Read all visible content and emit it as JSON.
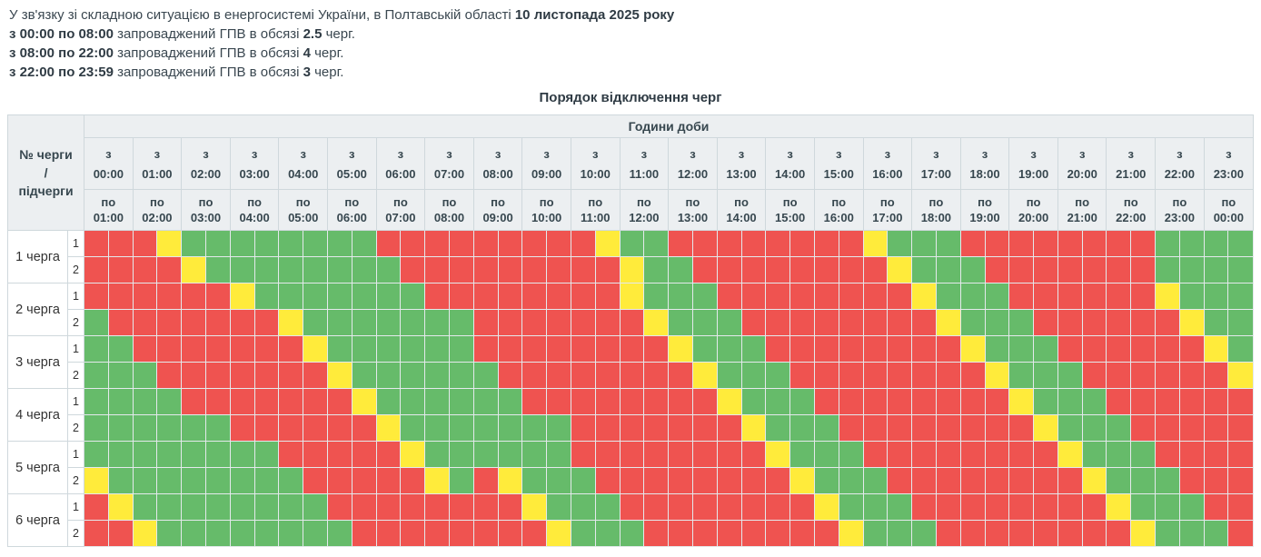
{
  "intro": {
    "lines": [
      {
        "segments": [
          {
            "text": "У зв'язку зі складною ситуацією в енергосистемі України, в Полтавській області ",
            "bold": false
          },
          {
            "text": "10 листопада 2025 року",
            "bold": true
          }
        ]
      },
      {
        "segments": [
          {
            "text": "з 00:00 по 08:00",
            "bold": true
          },
          {
            "text": " запроваджений ГПВ в обсязі ",
            "bold": false
          },
          {
            "text": "2.5",
            "bold": true
          },
          {
            "text": " черг.",
            "bold": false
          }
        ]
      },
      {
        "segments": [
          {
            "text": "з 08:00 по 22:00",
            "bold": true
          },
          {
            "text": " запроваджений ГПВ в обсязі ",
            "bold": false
          },
          {
            "text": "4",
            "bold": true
          },
          {
            "text": " черг.",
            "bold": false
          }
        ]
      },
      {
        "segments": [
          {
            "text": "з 22:00 по 23:59",
            "bold": true
          },
          {
            "text": " запроваджений ГПВ в обсязі ",
            "bold": false
          },
          {
            "text": "3",
            "bold": true
          },
          {
            "text": " черг.",
            "bold": false
          }
        ]
      }
    ]
  },
  "table": {
    "corner_label": "№ черги\n/\nпідчерги",
    "from_prefix": "з",
    "to_prefix": "по"
  },
  "chart_data": {
    "type": "heatmap",
    "title": "Порядок відключення черг",
    "x_axis_label": "Години доби",
    "resolution_minutes": 30,
    "cell_states": {
      "R": "outage",
      "G": "power-on",
      "Y": "possible-outage"
    },
    "legend": {
      "R": "#ef5350",
      "G": "#66bb6a",
      "Y": "#ffeb3b"
    },
    "hours_from": [
      "00:00",
      "01:00",
      "02:00",
      "03:00",
      "04:00",
      "05:00",
      "06:00",
      "07:00",
      "08:00",
      "09:00",
      "10:00",
      "11:00",
      "12:00",
      "13:00",
      "14:00",
      "15:00",
      "16:00",
      "17:00",
      "18:00",
      "19:00",
      "20:00",
      "21:00",
      "22:00",
      "23:00"
    ],
    "hours_to": [
      "01:00",
      "02:00",
      "03:00",
      "04:00",
      "05:00",
      "06:00",
      "07:00",
      "08:00",
      "09:00",
      "10:00",
      "11:00",
      "12:00",
      "13:00",
      "14:00",
      "15:00",
      "16:00",
      "17:00",
      "18:00",
      "19:00",
      "20:00",
      "21:00",
      "22:00",
      "23:00",
      "00:00"
    ],
    "rows": [
      {
        "queue": "1 черга",
        "subqueue": "1",
        "cells": "RRRYGGGGGGGGRRRRRRRRRYGGRRRRRRRRYGGGRRRRRRRRGGGG"
      },
      {
        "queue": "1 черга",
        "subqueue": "2",
        "cells": "RRRRYGGGGGGGGRRRRRRRRRYGGRRRRRRRRYGGGRRRRRRRGGGG"
      },
      {
        "queue": "2 черга",
        "subqueue": "1",
        "cells": "RRRRRRYGGGGGGGRRRRRRRRYGGGRRRRRRRRYGGGRRRRRRYGGG"
      },
      {
        "queue": "2 черга",
        "subqueue": "2",
        "cells": "GRRRRRRRYGGGGGGGRRRRRRRYGGGRRRRRRRRYGGGRRRRRRYGG"
      },
      {
        "queue": "3 черга",
        "subqueue": "1",
        "cells": "GGRRRRRRRYGGGGGGRRRRRRRRYGGGRRRRRRRRYGGGRRRRRRYG"
      },
      {
        "queue": "3 черга",
        "subqueue": "2",
        "cells": "GGGRRRRRRRYGGGGGGRRRRRRRRYGGGRRRRRRRRYGGGRRRRRRY"
      },
      {
        "queue": "4 черга",
        "subqueue": "1",
        "cells": "GGGGRRRRRRRYGGGGGGRRRRRRRRYGGGRRRRRRRRYGGGRRRRRR"
      },
      {
        "queue": "4 черга",
        "subqueue": "2",
        "cells": "GGGGGGRRRRRRYGGGGGGGRRRRRRRYGGGRRRRRRRRYGGGRRRRR"
      },
      {
        "queue": "5 черга",
        "subqueue": "1",
        "cells": "GGGGGGGGRRRRRYGGGGGGRRRRRRRRYGGGRRRRRRRRYGGGRRRR"
      },
      {
        "queue": "5 черга",
        "subqueue": "2",
        "cells": "YGGGGGGGGRRRRRYGRYGGGRRRRRRRRYGGGRRRRRRRRYGGGRRR"
      },
      {
        "queue": "6 черга",
        "subqueue": "1",
        "cells": "RYGGGGGGGGRRRRRRRRYGGGRRRRRRRRYGGGRRRRRRRRYGGGRR"
      },
      {
        "queue": "6 черга",
        "subqueue": "2",
        "cells": "RRYGGGGGGGGRRRRRRRRYGGGRRRRRRRRYGGGRRRRRRRRYGGGR"
      }
    ]
  }
}
